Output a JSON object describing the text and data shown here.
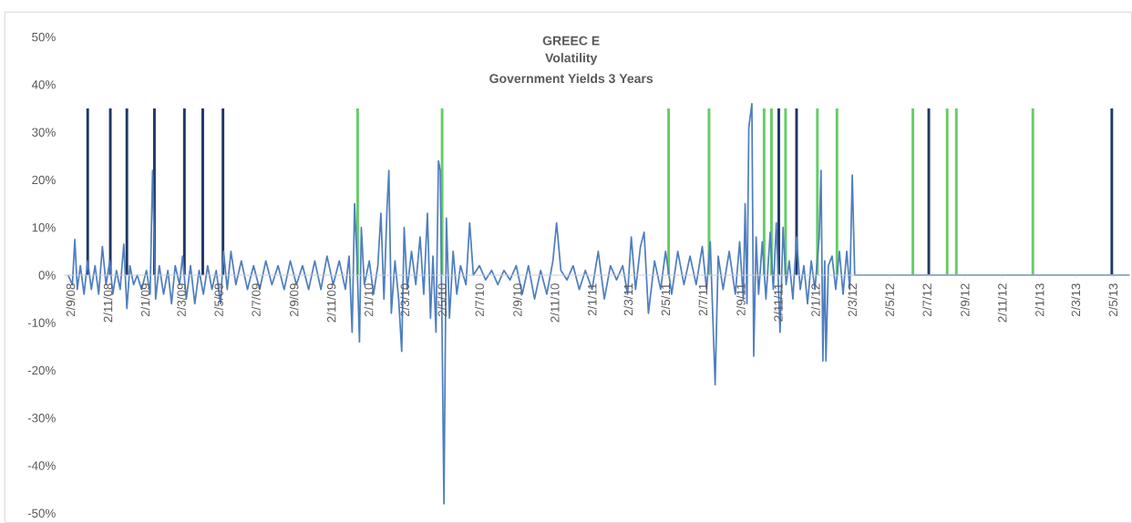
{
  "chart_data": {
    "type": "line",
    "title": "GREEC E",
    "subtitle": "Volatility",
    "annotations": [
      "Government Yields 3 Years"
    ],
    "xlim": [
      "2008-08-22",
      "2013-05-29"
    ],
    "ylim": [
      -50,
      50
    ],
    "yticks": [
      {
        "value": -50,
        "label": "-50%"
      },
      {
        "value": -40,
        "label": "-40%"
      },
      {
        "value": -30,
        "label": "-30%"
      },
      {
        "value": -20,
        "label": "-20%"
      },
      {
        "value": -10,
        "label": "-10%"
      },
      {
        "value": 0,
        "label": "0%"
      },
      {
        "value": 10,
        "label": "10%"
      },
      {
        "value": 20,
        "label": "20%"
      },
      {
        "value": 30,
        "label": "30%"
      },
      {
        "value": 40,
        "label": "40%"
      },
      {
        "value": 50,
        "label": "50%"
      }
    ],
    "xticks": [
      {
        "value": "2008-09-02",
        "label": "2/9/08"
      },
      {
        "value": "2008-11-02",
        "label": "2/11/08"
      },
      {
        "value": "2009-01-02",
        "label": "2/1/09"
      },
      {
        "value": "2009-03-02",
        "label": "2/3/09"
      },
      {
        "value": "2009-05-02",
        "label": "2/5/09"
      },
      {
        "value": "2009-07-02",
        "label": "2/7/09"
      },
      {
        "value": "2009-09-02",
        "label": "2/9/09"
      },
      {
        "value": "2009-11-02",
        "label": "2/11/09"
      },
      {
        "value": "2010-01-02",
        "label": "2/1/10"
      },
      {
        "value": "2010-03-02",
        "label": "2/3/10"
      },
      {
        "value": "2010-05-02",
        "label": "2/5/10"
      },
      {
        "value": "2010-07-02",
        "label": "2/7/10"
      },
      {
        "value": "2010-09-02",
        "label": "2/9/10"
      },
      {
        "value": "2010-11-02",
        "label": "2/11/10"
      },
      {
        "value": "2011-01-02",
        "label": "2/1/11"
      },
      {
        "value": "2011-03-02",
        "label": "2/3/11"
      },
      {
        "value": "2011-05-02",
        "label": "2/5/11"
      },
      {
        "value": "2011-07-02",
        "label": "2/7/11"
      },
      {
        "value": "2011-09-02",
        "label": "2/9/11"
      },
      {
        "value": "2011-11-02",
        "label": "2/11/11"
      },
      {
        "value": "2012-01-02",
        "label": "2/1/12"
      },
      {
        "value": "2012-03-02",
        "label": "2/3/12"
      },
      {
        "value": "2012-05-02",
        "label": "2/5/12"
      },
      {
        "value": "2012-07-02",
        "label": "2/7/12"
      },
      {
        "value": "2012-09-02",
        "label": "2/9/12"
      },
      {
        "value": "2012-11-02",
        "label": "2/11/12"
      },
      {
        "value": "2013-01-02",
        "label": "2/1/13"
      },
      {
        "value": "2013-03-02",
        "label": "2/3/13"
      },
      {
        "value": "2013-05-02",
        "label": "2/5/13"
      }
    ],
    "series": [
      {
        "type": "bar",
        "color": "#1f3864",
        "x": [
          "2008-09-30",
          "2008-11-06",
          "2008-12-03",
          "2009-01-17",
          "2009-03-07",
          "2009-04-06",
          "2009-05-09",
          "2011-11-03",
          "2011-12-02",
          "2012-07-05",
          "2013-04-30"
        ],
        "values": [
          35,
          35,
          35,
          35,
          35,
          35,
          35,
          35,
          35,
          35,
          35
        ]
      },
      {
        "type": "bar",
        "color": "#66cc66",
        "x": [
          "2009-12-15",
          "2010-05-02",
          "2011-05-07",
          "2011-07-12",
          "2011-10-10",
          "2011-10-22",
          "2011-11-14",
          "2012-01-05",
          "2012-02-06",
          "2012-06-09",
          "2012-08-04",
          "2012-08-19",
          "2012-12-22"
        ],
        "values": [
          35,
          35,
          35,
          35,
          35,
          35,
          35,
          35,
          35,
          35,
          35,
          35,
          35
        ]
      },
      {
        "color": "#4f7fbf",
        "x": [
          "2008-08-29",
          "2008-09-05",
          "2008-09-09",
          "2008-09-13",
          "2008-09-18",
          "2008-09-24",
          "2008-09-30",
          "2008-10-06",
          "2008-10-12",
          "2008-10-18",
          "2008-10-24",
          "2008-10-30",
          "2008-11-05",
          "2008-11-10",
          "2008-11-16",
          "2008-11-22",
          "2008-11-28",
          "2008-12-03",
          "2008-12-08",
          "2008-12-14",
          "2008-12-20",
          "2008-12-27",
          "2009-01-04",
          "2009-01-10",
          "2009-01-14",
          "2009-01-19",
          "2009-01-25",
          "2009-02-01",
          "2009-02-08",
          "2009-02-14",
          "2009-02-20",
          "2009-02-27",
          "2009-03-04",
          "2009-03-10",
          "2009-03-17",
          "2009-03-24",
          "2009-03-31",
          "2009-04-07",
          "2009-04-14",
          "2009-04-21",
          "2009-04-28",
          "2009-05-05",
          "2009-05-10",
          "2009-05-16",
          "2009-05-22",
          "2009-05-30",
          "2009-06-08",
          "2009-06-18",
          "2009-06-28",
          "2009-07-08",
          "2009-07-18",
          "2009-07-28",
          "2009-08-07",
          "2009-08-17",
          "2009-08-27",
          "2009-09-06",
          "2009-09-16",
          "2009-09-26",
          "2009-10-06",
          "2009-10-16",
          "2009-10-26",
          "2009-11-05",
          "2009-11-15",
          "2009-11-25",
          "2009-12-01",
          "2009-12-06",
          "2009-12-10",
          "2009-12-14",
          "2009-12-18",
          "2009-12-21",
          "2009-12-26",
          "2010-01-03",
          "2010-01-10",
          "2010-01-17",
          "2010-01-22",
          "2010-01-27",
          "2010-02-01",
          "2010-02-04",
          "2010-02-08",
          "2010-02-14",
          "2010-02-20",
          "2010-02-25",
          "2010-03-01",
          "2010-03-06",
          "2010-03-13",
          "2010-03-20",
          "2010-03-27",
          "2010-04-02",
          "2010-04-08",
          "2010-04-13",
          "2010-04-17",
          "2010-04-22",
          "2010-04-26",
          "2010-04-29",
          "2010-05-02",
          "2010-05-05",
          "2010-05-09",
          "2010-05-14",
          "2010-05-20",
          "2010-05-26",
          "2010-06-01",
          "2010-06-10",
          "2010-06-16",
          "2010-06-22",
          "2010-07-02",
          "2010-07-12",
          "2010-07-22",
          "2010-08-01",
          "2010-08-11",
          "2010-08-21",
          "2010-08-31",
          "2010-09-10",
          "2010-09-20",
          "2010-09-30",
          "2010-10-10",
          "2010-10-20",
          "2010-10-30",
          "2010-11-05",
          "2010-11-12",
          "2010-11-22",
          "2010-12-02",
          "2010-12-12",
          "2010-12-22",
          "2011-01-02",
          "2011-01-12",
          "2011-01-22",
          "2011-02-01",
          "2011-02-11",
          "2011-02-21",
          "2011-03-01",
          "2011-03-07",
          "2011-03-14",
          "2011-03-22",
          "2011-03-28",
          "2011-04-04",
          "2011-04-14",
          "2011-04-24",
          "2011-05-02",
          "2011-05-12",
          "2011-05-22",
          "2011-06-01",
          "2011-06-11",
          "2011-06-21",
          "2011-07-01",
          "2011-07-08",
          "2011-07-14",
          "2011-07-22",
          "2011-07-27",
          "2011-08-04",
          "2011-08-14",
          "2011-08-24",
          "2011-08-31",
          "2011-09-06",
          "2011-09-09",
          "2011-09-12",
          "2011-09-15",
          "2011-09-20",
          "2011-09-23",
          "2011-09-27",
          "2011-10-01",
          "2011-10-07",
          "2011-10-13",
          "2011-10-20",
          "2011-10-25",
          "2011-10-30",
          "2011-11-05",
          "2011-11-10",
          "2011-11-15",
          "2011-11-20",
          "2011-11-26",
          "2011-12-02",
          "2011-12-08",
          "2011-12-14",
          "2011-12-20",
          "2011-12-26",
          "2012-01-01",
          "2012-01-08",
          "2012-01-11",
          "2012-01-14",
          "2012-01-17",
          "2012-01-19",
          "2012-01-23",
          "2012-01-29",
          "2012-02-04",
          "2012-02-10",
          "2012-02-16",
          "2012-02-22",
          "2012-02-27",
          "2012-03-02",
          "2012-03-06",
          "2013-05-29"
        ],
        "values": [
          0,
          -2,
          7.5,
          -3,
          2,
          -4,
          3,
          -3,
          2,
          -4,
          6,
          -2,
          3,
          -4,
          1,
          -3,
          6.5,
          -7,
          2,
          -2,
          0,
          -3,
          1,
          -4,
          22,
          -5,
          2,
          -4,
          1,
          -6,
          2,
          -2,
          4,
          -5,
          2,
          -6,
          1,
          -4,
          2,
          -3,
          1,
          -6,
          5,
          -3,
          5,
          -2,
          3,
          -3,
          2,
          -3,
          3,
          -2,
          2,
          -3,
          3,
          -2,
          2,
          -3,
          3,
          -3,
          4,
          -2,
          3,
          -3,
          4,
          -12,
          15,
          3,
          -14,
          10,
          -2,
          3,
          -4,
          2,
          13,
          -5,
          14,
          22,
          -8,
          3,
          -5,
          -16,
          10,
          -3,
          5,
          -2,
          8,
          -4,
          13,
          -9,
          4,
          -12,
          24,
          22,
          -13,
          -48,
          12,
          -9,
          5,
          -4,
          2,
          -2,
          11,
          0,
          2,
          -1,
          1,
          -2,
          1,
          -1,
          2,
          -4,
          2,
          -5,
          1,
          -4,
          3,
          11,
          1,
          -1,
          2,
          -3,
          1,
          -3,
          5,
          -5,
          2,
          -1,
          2,
          -4,
          8,
          -3,
          6,
          9,
          -8,
          3,
          -3,
          5,
          -4,
          5,
          -2,
          4,
          -2,
          6,
          -3,
          7,
          -23,
          4,
          -3,
          5,
          -4,
          7,
          -5,
          15,
          -6,
          31,
          36,
          -17,
          8,
          -4,
          7,
          -5,
          9,
          -3,
          11,
          -12,
          10,
          -2,
          3,
          -5,
          8,
          -3,
          2,
          -6,
          3,
          -3,
          8,
          22,
          -18,
          3,
          -18,
          2,
          4,
          -3,
          5,
          -4,
          5,
          -3,
          21,
          0,
          0
        ]
      }
    ]
  }
}
